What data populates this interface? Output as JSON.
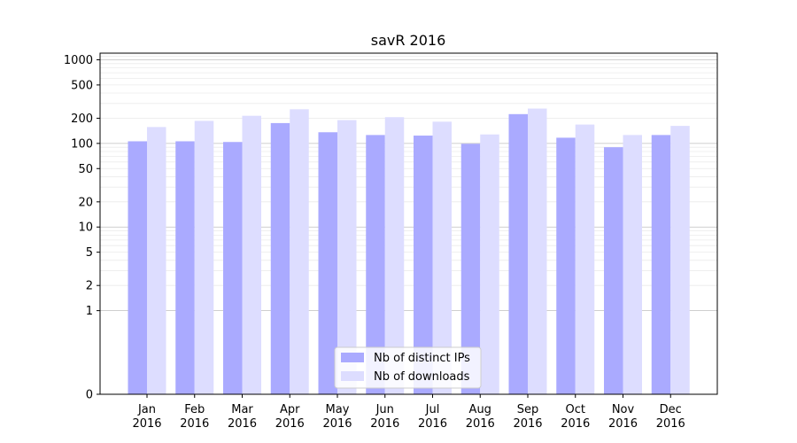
{
  "chart_data": {
    "type": "bar",
    "title": "savR 2016",
    "xlabel": "",
    "ylabel": "",
    "yscale": "symlog",
    "ylim": [
      0,
      1200
    ],
    "yticks": [
      0,
      1,
      2,
      5,
      10,
      20,
      50,
      100,
      200,
      500,
      1000
    ],
    "grid": true,
    "legend_position": "bottom-center",
    "categories": [
      [
        "Jan",
        "2016"
      ],
      [
        "Feb",
        "2016"
      ],
      [
        "Mar",
        "2016"
      ],
      [
        "Apr",
        "2016"
      ],
      [
        "May",
        "2016"
      ],
      [
        "Jun",
        "2016"
      ],
      [
        "Jul",
        "2016"
      ],
      [
        "Aug",
        "2016"
      ],
      [
        "Sep",
        "2016"
      ],
      [
        "Oct",
        "2016"
      ],
      [
        "Nov",
        "2016"
      ],
      [
        "Dec",
        "2016"
      ]
    ],
    "series": [
      {
        "name": "Nb of distinct IPs",
        "color": "#aaaaff",
        "values": [
          106,
          106,
          104,
          175,
          136,
          126,
          124,
          99,
          224,
          117,
          90,
          126
        ]
      },
      {
        "name": "Nb of downloads",
        "color": "#ddddff",
        "values": [
          157,
          186,
          214,
          256,
          190,
          206,
          182,
          128,
          261,
          168,
          126,
          162
        ]
      }
    ]
  }
}
